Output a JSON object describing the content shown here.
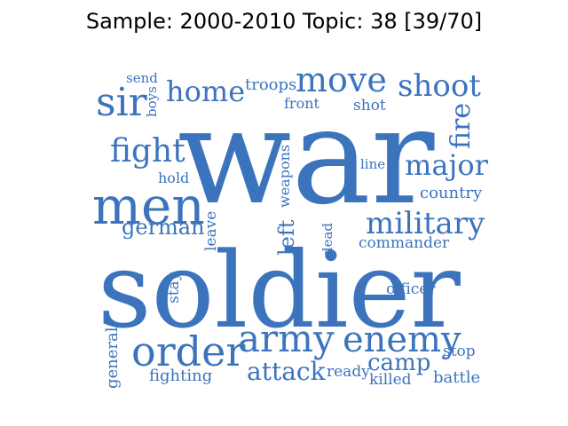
{
  "title": "Sample: 2000-2010 Topic: 38 [39/70]",
  "word_color": "#3b74bd",
  "words": {
    "war": "war",
    "soldier": "soldier",
    "men": "men",
    "army": "army",
    "enemy": "enemy",
    "order": "order",
    "move": "move",
    "shoot": "shoot",
    "military": "military",
    "major": "major",
    "sir": "sir",
    "home": "home",
    "fight": "fight",
    "fire": "fire",
    "attack": "attack",
    "camp": "camp",
    "german": "german",
    "left": "left",
    "troops": "troops",
    "commander": "commander",
    "country": "country",
    "officer": "officer",
    "weapons": "weapons",
    "general": "general",
    "fighting": "fighting",
    "ready": "ready",
    "killed": "killed",
    "battle": "battle",
    "stop": "stop",
    "front": "front",
    "shot": "shot",
    "send": "send",
    "boys": "boys",
    "hold": "hold",
    "line": "line",
    "leave": "leave",
    "dead": "dead",
    "stay": "stay"
  }
}
